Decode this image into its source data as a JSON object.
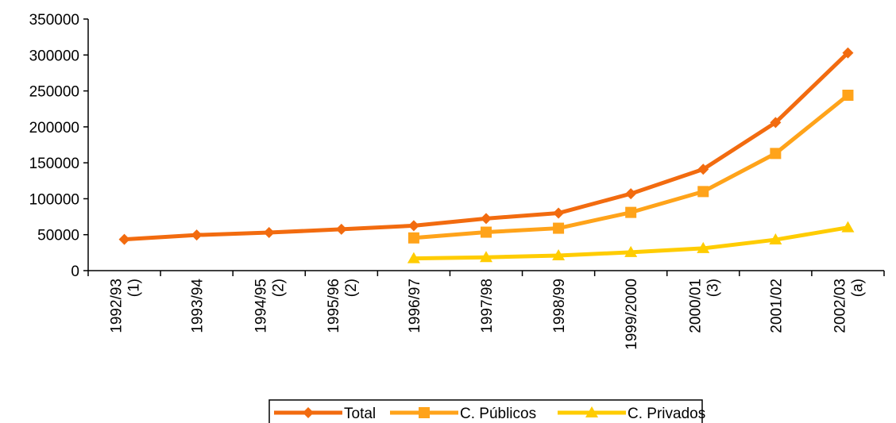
{
  "chart_data": {
    "type": "line",
    "title": "",
    "xlabel": "",
    "ylabel": "",
    "ylim": [
      0,
      350000
    ],
    "yticks": [
      0,
      50000,
      100000,
      150000,
      200000,
      250000,
      300000,
      350000
    ],
    "ytick_labels": [
      "0",
      "50000",
      "100000",
      "150000",
      "200000",
      "250000",
      "300000",
      "350000"
    ],
    "categories": [
      [
        "1992/93",
        "(1)"
      ],
      [
        "1993/94"
      ],
      [
        "1994/95",
        "(2)"
      ],
      [
        "1995/96",
        "(2)"
      ],
      [
        "1996/97"
      ],
      [
        "1997/98"
      ],
      [
        "1998/99"
      ],
      [
        "1999/2000"
      ],
      [
        "2000/01",
        "(3)"
      ],
      [
        "2001/02"
      ],
      [
        "2002/03",
        "(a)"
      ]
    ],
    "series": [
      {
        "name": "Total",
        "color": "#F26B0F",
        "marker": "diamond",
        "values": [
          43500,
          49500,
          53000,
          57500,
          62500,
          72500,
          80000,
          107000,
          141000,
          206000,
          303000
        ]
      },
      {
        "name": "C. Públicos",
        "color": "#FFA31A",
        "marker": "square",
        "values": [
          null,
          null,
          null,
          null,
          45500,
          53500,
          59000,
          81000,
          110000,
          163000,
          244000
        ]
      },
      {
        "name": "C. Privados",
        "color": "#FFCC00",
        "marker": "triangle",
        "values": [
          null,
          null,
          null,
          null,
          17000,
          18500,
          21000,
          25500,
          31000,
          43000,
          60000
        ]
      }
    ],
    "grid": false,
    "legend": "bottom"
  }
}
